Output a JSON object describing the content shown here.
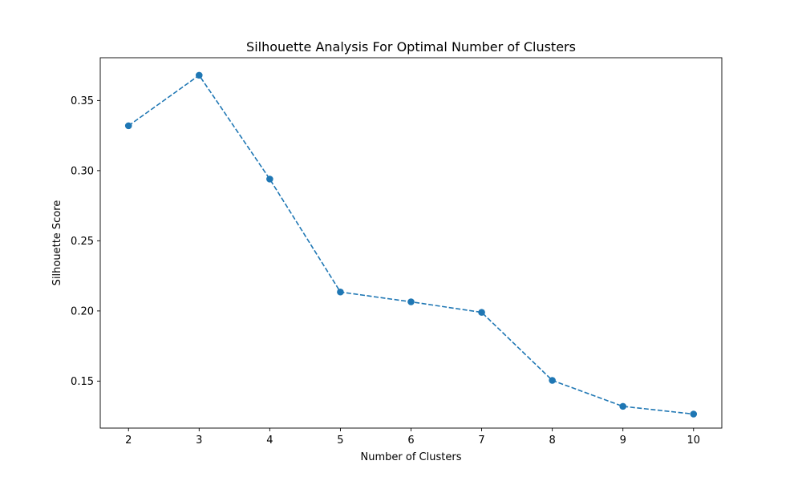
{
  "chart_data": {
    "type": "line",
    "title": "Silhouette Analysis For Optimal Number of Clusters",
    "xlabel": "Number of Clusters",
    "ylabel": "Silhouette Score",
    "x": [
      2,
      3,
      4,
      5,
      6,
      7,
      8,
      9,
      10
    ],
    "series": [
      {
        "values": [
          0.332,
          0.368,
          0.294,
          0.2135,
          0.2065,
          0.199,
          0.1505,
          0.132,
          0.1265
        ],
        "color": "#1f77b4",
        "line_style": "dashed",
        "marker": "circle"
      }
    ],
    "xticks": [
      "2",
      "3",
      "4",
      "5",
      "6",
      "7",
      "8",
      "9",
      "10"
    ],
    "yticks": [
      "0.15",
      "0.20",
      "0.25",
      "0.30",
      "0.35"
    ],
    "xlim": [
      1.6,
      10.4
    ],
    "ylim": [
      0.1165,
      0.3805
    ],
    "grid": false,
    "legend": "none"
  }
}
